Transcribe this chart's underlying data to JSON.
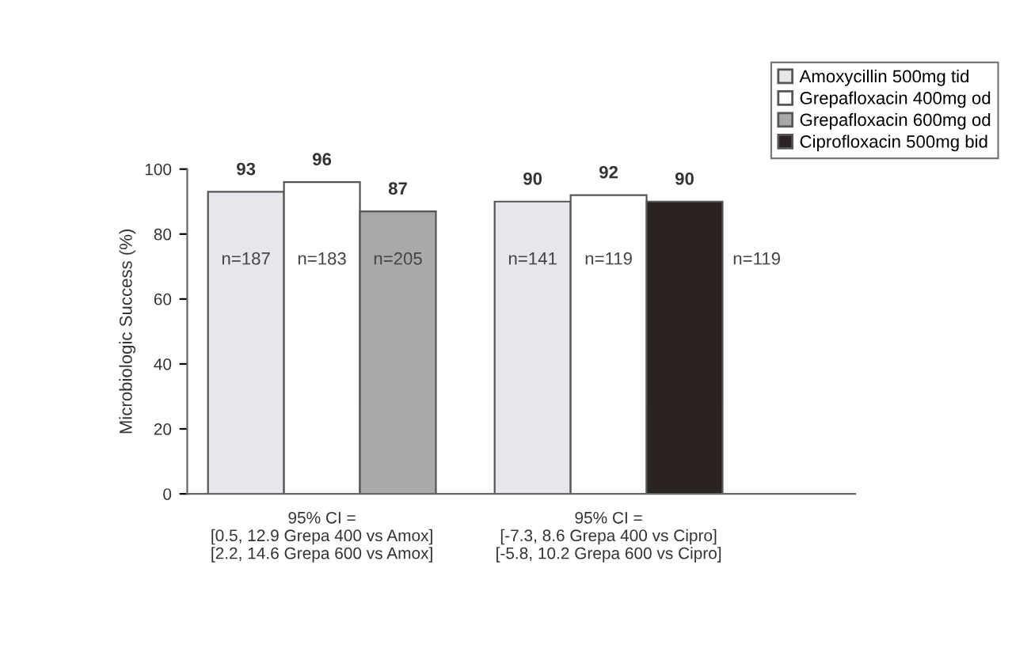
{
  "chart_data": {
    "type": "bar",
    "ylabel": "Microbiologic Success (%)",
    "categories": [
      "95% CI =\n[0.5, 12.9 Grepa 400 vs Amox]\n[2.2, 14.6 Grepa 600 vs Amox]",
      "95% CI =\n[-7.3, 8.6 Grepa 400 vs Cipro]\n[-5.8, 10.2 Grepa 600 vs Cipro]"
    ],
    "series": [
      {
        "name": "Amoxycillin 500mg tid",
        "color": "#e6e6ec",
        "values": [
          93,
          90
        ]
      },
      {
        "name": "Grepafloxacin 400mg od",
        "color": "#ffffff",
        "values": [
          96,
          92
        ]
      },
      {
        "name": "Grepafloxacin 600mg od",
        "color": "#a9a9a9",
        "values": [
          87,
          null
        ]
      },
      {
        "name": "Ciprofloxacin 500mg bid",
        "color": "#2b2222",
        "values": [
          null,
          90
        ]
      }
    ],
    "annotations": [
      "n=187",
      "n=183",
      "n=205",
      "n=141",
      "n=119",
      "n=119"
    ],
    "ylim": [
      0,
      100
    ],
    "yticks": [
      0,
      20,
      40,
      60,
      80,
      100
    ],
    "data_labels": true,
    "grid": false,
    "legend": "top right"
  }
}
